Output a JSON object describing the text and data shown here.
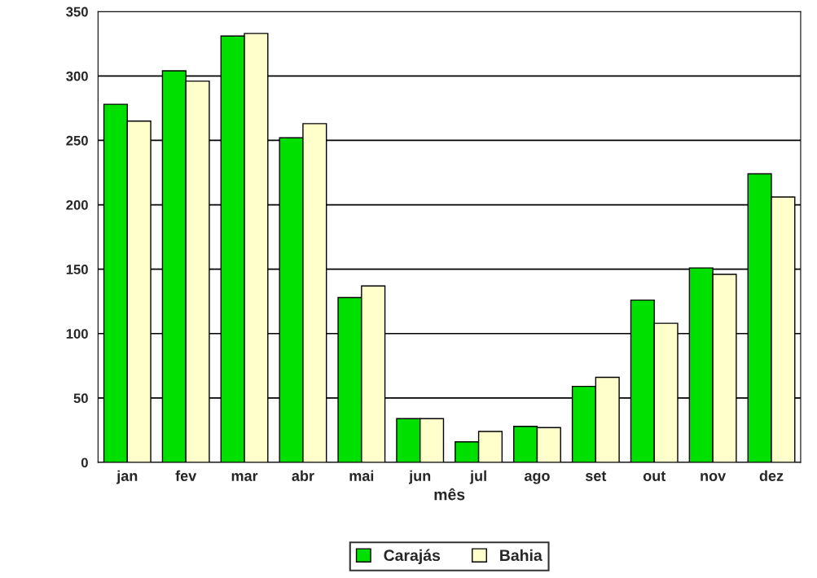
{
  "chart_data": {
    "type": "bar",
    "xlabel": "mês",
    "categories": [
      "jan",
      "fev",
      "mar",
      "abr",
      "mai",
      "jun",
      "jul",
      "ago",
      "set",
      "out",
      "nov",
      "dez"
    ],
    "series": [
      {
        "name": "Carajás",
        "color": "#00e000",
        "values": [
          278,
          304,
          331,
          252,
          128,
          34,
          16,
          28,
          59,
          126,
          151,
          224
        ]
      },
      {
        "name": "Bahia",
        "color": "#ffffcc",
        "values": [
          265,
          296,
          333,
          263,
          137,
          34,
          24,
          27,
          66,
          108,
          146,
          206
        ]
      }
    ],
    "ylim": [
      0,
      350
    ],
    "yticks": [
      0,
      50,
      100,
      150,
      200,
      250,
      300,
      350
    ],
    "grid": "y",
    "legend": "bottom"
  }
}
